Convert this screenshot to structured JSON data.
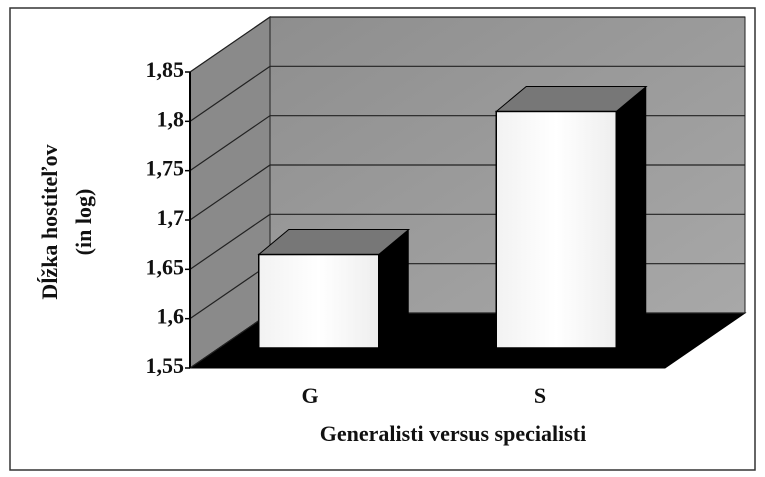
{
  "chart_data": {
    "type": "bar3d",
    "categories": [
      "G",
      "S"
    ],
    "values": [
      1.665,
      1.81
    ],
    "color": "#ffffff",
    "ylim": [
      1.55,
      1.85
    ],
    "yticks": [
      {
        "value": 1.55,
        "label": "1,55"
      },
      {
        "value": 1.6,
        "label": "1,6"
      },
      {
        "value": 1.65,
        "label": "1,65"
      },
      {
        "value": 1.7,
        "label": "1,7"
      },
      {
        "value": 1.75,
        "label": "1,75"
      },
      {
        "value": 1.8,
        "label": "1,8"
      },
      {
        "value": 1.85,
        "label": "1,85"
      }
    ],
    "grid": true,
    "y_label": [
      "Dĺžka hostiteľov",
      "(in log)"
    ],
    "x_label": "Generalisti versus specialisti"
  }
}
